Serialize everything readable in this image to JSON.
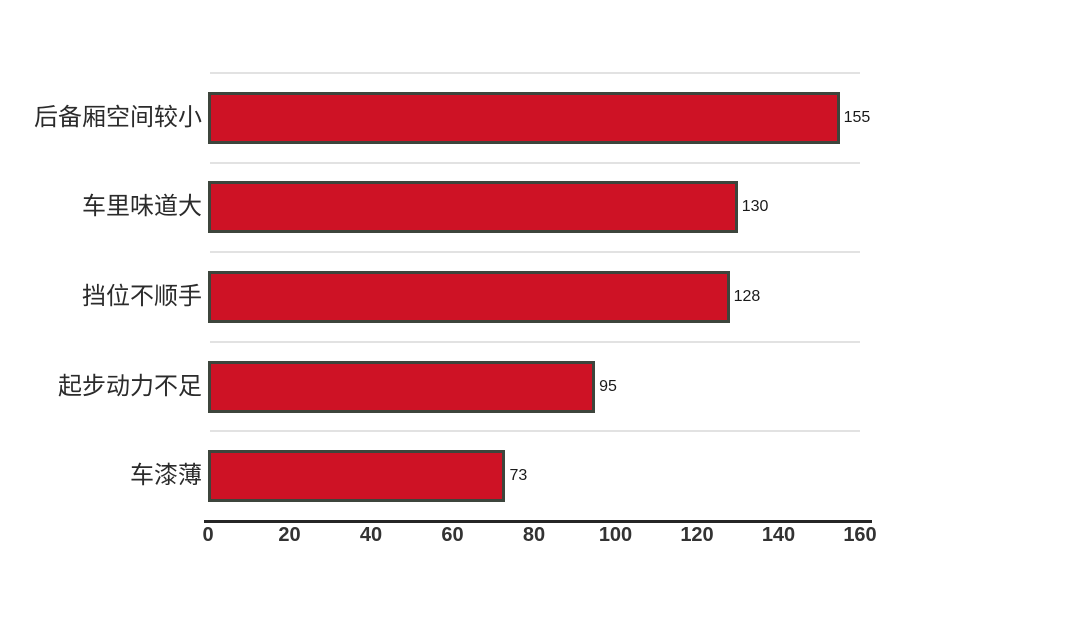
{
  "chart_data": {
    "type": "bar",
    "orientation": "horizontal",
    "title": "",
    "xlabel": "",
    "ylabel": "",
    "categories": [
      "后备厢空间较小",
      "车里味道大",
      "挡位不顺手",
      "起步动力不足",
      "车漆薄"
    ],
    "values": [
      155,
      130,
      128,
      95,
      73
    ],
    "value_labels": [
      "155",
      "130",
      "128",
      "95",
      "73"
    ],
    "xlim": [
      0,
      160
    ],
    "x_ticks": [
      "0",
      "20",
      "40",
      "60",
      "80",
      "100",
      "120",
      "140",
      "160"
    ],
    "grid": "horizontal row separator lines, on",
    "legend": "none",
    "colors": {
      "bar_fill": "#ce1225",
      "bar_border": "#3d453c",
      "gridline": "#e2e2e2",
      "axis_line": "#262626",
      "text": "#2b2b2b",
      "background": "#ffffff"
    }
  }
}
